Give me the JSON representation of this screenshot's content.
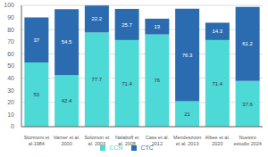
{
  "chart_data": {
    "type": "bar",
    "stacked": true,
    "data_labels": true,
    "grid": true,
    "legend": "bottom",
    "categories": [
      "Stormont et\nal.1984",
      "Varner et al.\n2000",
      "Solomon et\nal. 2003",
      "Nalaboff et\nal. 2008",
      "Case et al.\n2012",
      "Mendeszoon\net al. 2013",
      "Albee et al.\n2020",
      "Nuestro\nestudio 2024"
    ],
    "series": [
      {
        "name": "CCN",
        "color": "#4dd9d5",
        "values": [
          53,
          42.4,
          77.7,
          71.4,
          76,
          21,
          71.4,
          37.6
        ]
      },
      {
        "name": "CTC",
        "color": "#2b6cb0",
        "values": [
          37,
          54.5,
          22.2,
          25.7,
          13,
          76.3,
          14.3,
          61.2
        ]
      }
    ],
    "ylim": [
      0,
      100
    ],
    "yticks": [
      0,
      10,
      20,
      30,
      40,
      50,
      60,
      70,
      80,
      90,
      100
    ]
  }
}
